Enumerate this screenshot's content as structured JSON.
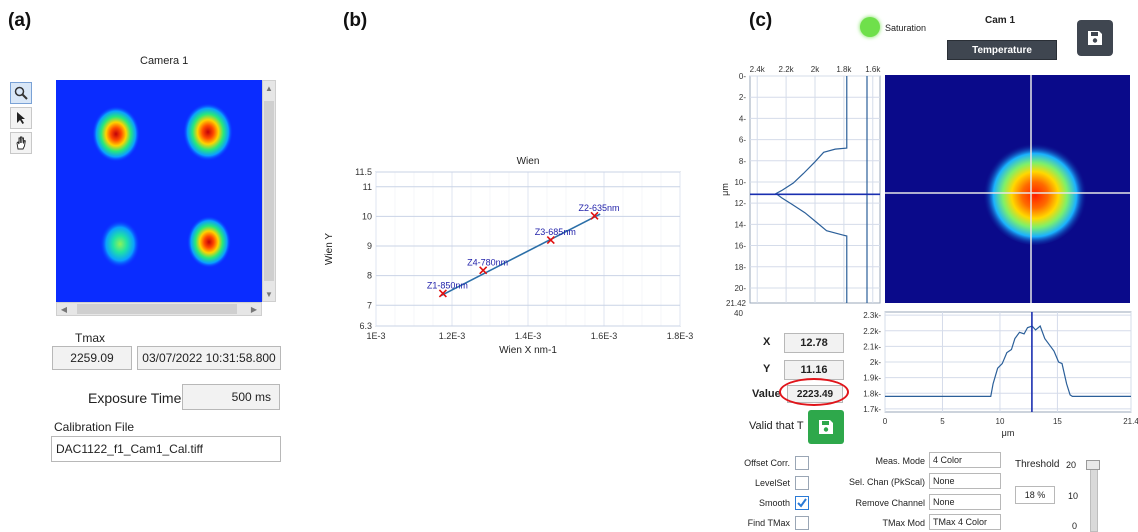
{
  "panels": {
    "a": "(a)",
    "b": "(b)",
    "c": "(c)"
  },
  "panel_a": {
    "camera_title": "Camera 1",
    "tools": [
      {
        "icon": "zoom-icon"
      },
      {
        "icon": "pointer-icon"
      },
      {
        "icon": "hand-icon"
      }
    ],
    "tmax_label": "Tmax",
    "tmax_value": "2259.09",
    "timestamp": "03/07/2022 10:31:58.800",
    "exposure_label": "Exposure Time",
    "exposure_value": "500 ms",
    "calibration_label": "Calibration File",
    "calibration_value": "DAC1122_f1_Cam1_Cal.tiff"
  },
  "panel_b": {
    "chart_data": {
      "type": "line",
      "title": "Wien",
      "xlabel": "Wien X nm-1",
      "ylabel": "Wien Y",
      "xlim": [
        0.001,
        0.0018
      ],
      "ylim": [
        6.3,
        11.5
      ],
      "x_ticks": [
        "1E-3",
        "1.2E-3",
        "1.4E-3",
        "1.6E-3",
        "1.8E-3"
      ],
      "y_ticks": [
        "6.3",
        "7",
        "8",
        "9",
        "10",
        "11",
        "11.5"
      ],
      "grid": true,
      "points": [
        {
          "label": "Z1-850nm",
          "x": 0.001176,
          "y": 7.4
        },
        {
          "label": "Z4-780nm",
          "x": 0.001282,
          "y": 8.18
        },
        {
          "label": "Z3-685nm",
          "x": 0.00146,
          "y": 9.2
        },
        {
          "label": "Z2-635nm",
          "x": 0.001575,
          "y": 10.02
        }
      ],
      "fit_line": {
        "x": [
          0.00117,
          0.00159
        ],
        "y": [
          7.32,
          10.08
        ]
      }
    }
  },
  "panel_c": {
    "saturation_label": "Saturation",
    "cam_title": "Cam 1",
    "mode_button": "Temperature",
    "colors": {
      "accent": "#3f4650",
      "led": "#6fe04b",
      "green": "#2ea84b",
      "plot_bg": "#0a0a8a"
    },
    "vprofile": {
      "top_ticks": [
        "2.4k",
        "2.2k",
        "2k",
        "1.8k",
        "1.6k"
      ],
      "left_ticks": [
        "0",
        "2",
        "4",
        "6",
        "8",
        "10",
        "12",
        "14",
        "16",
        "18",
        "20",
        "21.42"
      ],
      "axis_label": "μm",
      "extra_tick": "40"
    },
    "hprofile": {
      "y_ticks": [
        "2.3k",
        "2.2k",
        "2.1k",
        "2k",
        "1.9k",
        "1.8k",
        "1.7k"
      ],
      "x_ticks": [
        "0",
        "5",
        "10",
        "15",
        "21.4"
      ],
      "x_label": "μm"
    },
    "readout": {
      "x_label": "X",
      "x_value": "12.78",
      "y_label": "Y",
      "y_value": "11.16",
      "value_label": "Value",
      "value_value": "2223.49"
    },
    "valid_label": "Valid that T",
    "options": {
      "offset_label": "Offset Corr.",
      "levelset_label": "LevelSet",
      "smooth_label": "Smooth",
      "findtmax_label": "Find TMax",
      "smooth_checked": true,
      "meas_mode_label": "Meas. Mode",
      "meas_mode_value": "4 Color",
      "sel_chan_label": "Sel. Chan (PkScal)",
      "sel_chan_value": "None",
      "remove_label": "Remove Channel",
      "remove_value": "None",
      "tmax_mod_label": "TMax Mod",
      "tmax_mod_value": "TMax 4 Color",
      "threshold_label": "Threshold",
      "threshold_value": "18 %",
      "threshold_ticks": [
        "20",
        "10",
        "0"
      ]
    }
  }
}
